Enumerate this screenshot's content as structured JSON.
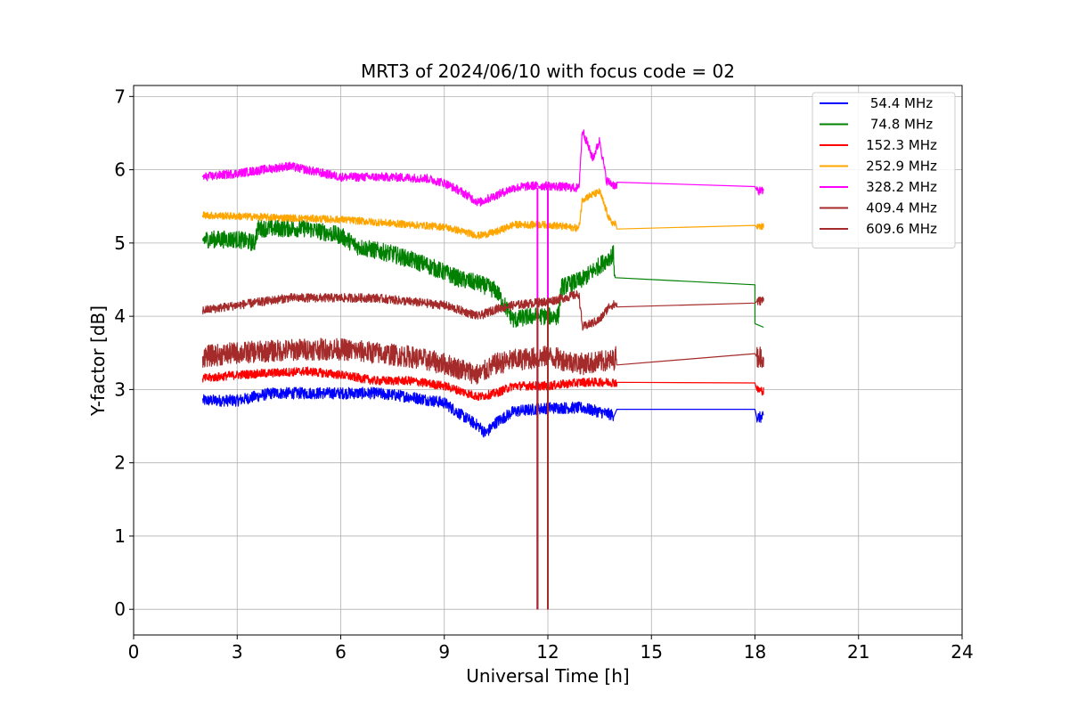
{
  "chart_data": {
    "type": "line",
    "title": "MRT3 of 2024/06/10 with focus code = 02",
    "xlabel": "Universal Time [h]",
    "ylabel": "Y-factor [dB]",
    "xlim": [
      0,
      24
    ],
    "ylim": [
      -0.35,
      7.15
    ],
    "xticks": [
      0,
      3,
      6,
      9,
      12,
      15,
      18,
      21,
      24
    ],
    "yticks": [
      0,
      1,
      2,
      3,
      4,
      5,
      6,
      7
    ],
    "xtick_labels": [
      "0",
      "3",
      "6",
      "9",
      "12",
      "15",
      "18",
      "21",
      "24"
    ],
    "ytick_labels": [
      "0",
      "1",
      "2",
      "3",
      "4",
      "5",
      "6",
      "7"
    ],
    "grid": true,
    "legend_position": "top-right",
    "series": [
      {
        "name": "54.4 MHz",
        "color": "#0000ff",
        "noise": 0.08,
        "points": [
          [
            2.0,
            2.85
          ],
          [
            3.0,
            2.85
          ],
          [
            4.0,
            2.95
          ],
          [
            5.0,
            2.95
          ],
          [
            6.0,
            2.95
          ],
          [
            7.0,
            2.95
          ],
          [
            8.0,
            2.9
          ],
          [
            9.0,
            2.82
          ],
          [
            9.5,
            2.65
          ],
          [
            10.0,
            2.5
          ],
          [
            10.2,
            2.4
          ],
          [
            10.5,
            2.55
          ],
          [
            11.0,
            2.7
          ],
          [
            12.0,
            2.75
          ],
          [
            13.0,
            2.75
          ],
          [
            13.9,
            2.65
          ],
          [
            14.0,
            2.73
          ],
          [
            18.0,
            2.73
          ],
          [
            18.05,
            2.62
          ],
          [
            18.25,
            2.62
          ]
        ],
        "gaps_after": [
          13.9,
          18.0
        ]
      },
      {
        "name": "74.8 MHz",
        "color": "#008000",
        "noise": 0.12,
        "points": [
          [
            2.0,
            5.05
          ],
          [
            3.0,
            5.05
          ],
          [
            3.5,
            5.0
          ],
          [
            3.6,
            5.2
          ],
          [
            5.0,
            5.2
          ],
          [
            6.0,
            5.1
          ],
          [
            6.5,
            4.95
          ],
          [
            7.5,
            4.85
          ],
          [
            8.5,
            4.7
          ],
          [
            9.5,
            4.5
          ],
          [
            10.0,
            4.45
          ],
          [
            10.5,
            4.35
          ],
          [
            11.0,
            3.95
          ],
          [
            11.5,
            4.0
          ],
          [
            12.3,
            4.0
          ],
          [
            12.4,
            4.4
          ],
          [
            13.0,
            4.5
          ],
          [
            13.9,
            4.85
          ],
          [
            13.95,
            4.45
          ],
          [
            18.0,
            4.43
          ],
          [
            18.0,
            3.9
          ],
          [
            18.25,
            3.85
          ]
        ],
        "gaps_after": [
          18.0
        ]
      },
      {
        "name": "152.3 MHz",
        "color": "#ff0000",
        "noise": 0.06,
        "points": [
          [
            2.0,
            3.15
          ],
          [
            3.0,
            3.2
          ],
          [
            5.0,
            3.25
          ],
          [
            6.0,
            3.2
          ],
          [
            7.0,
            3.12
          ],
          [
            8.0,
            3.12
          ],
          [
            9.0,
            3.05
          ],
          [
            10.0,
            2.9
          ],
          [
            10.5,
            2.95
          ],
          [
            11.0,
            3.05
          ],
          [
            12.0,
            3.05
          ],
          [
            13.0,
            3.1
          ],
          [
            13.9,
            3.1
          ],
          [
            14.0,
            3.09
          ],
          [
            18.0,
            3.09
          ],
          [
            18.05,
            3.0
          ],
          [
            18.25,
            2.98
          ]
        ],
        "gaps_after": [
          18.0
        ]
      },
      {
        "name": "252.9 MHz",
        "color": "#ffa500",
        "noise": 0.05,
        "points": [
          [
            2.0,
            5.38
          ],
          [
            4.0,
            5.35
          ],
          [
            6.0,
            5.32
          ],
          [
            8.0,
            5.25
          ],
          [
            9.0,
            5.22
          ],
          [
            10.0,
            5.1
          ],
          [
            10.5,
            5.15
          ],
          [
            11.0,
            5.25
          ],
          [
            12.0,
            5.25
          ],
          [
            12.9,
            5.2
          ],
          [
            13.0,
            5.6
          ],
          [
            13.5,
            5.7
          ],
          [
            13.8,
            5.3
          ],
          [
            14.0,
            5.24
          ],
          [
            18.0,
            5.24
          ],
          [
            18.05,
            5.22
          ],
          [
            18.25,
            5.22
          ]
        ],
        "gaps_after": [
          18.0
        ]
      },
      {
        "name": "328.2 MHz",
        "color": "#ff00ff",
        "noise": 0.06,
        "points": [
          [
            2.0,
            5.9
          ],
          [
            3.0,
            5.95
          ],
          [
            4.5,
            6.05
          ],
          [
            6.0,
            5.9
          ],
          [
            7.5,
            5.9
          ],
          [
            8.5,
            5.88
          ],
          [
            9.0,
            5.82
          ],
          [
            9.5,
            5.7
          ],
          [
            10.0,
            5.55
          ],
          [
            10.5,
            5.65
          ],
          [
            11.0,
            5.75
          ],
          [
            11.5,
            5.78
          ],
          [
            12.0,
            5.78
          ],
          [
            12.9,
            5.75
          ],
          [
            13.0,
            6.55
          ],
          [
            13.3,
            6.15
          ],
          [
            13.5,
            6.4
          ],
          [
            13.7,
            5.85
          ],
          [
            14.0,
            5.77
          ],
          [
            18.0,
            5.77
          ],
          [
            18.05,
            5.72
          ],
          [
            18.25,
            5.7
          ]
        ],
        "gaps_after": [
          18.0
        ],
        "spikes": [
          [
            11.7,
            5.75
          ],
          [
            12.0,
            5.75
          ]
        ]
      },
      {
        "name": "409.4 MHz",
        "color": "#a52a2a",
        "noise": 0.06,
        "points": [
          [
            2.0,
            4.08
          ],
          [
            3.0,
            4.15
          ],
          [
            4.5,
            4.25
          ],
          [
            6.0,
            4.25
          ],
          [
            7.0,
            4.25
          ],
          [
            8.0,
            4.2
          ],
          [
            9.0,
            4.15
          ],
          [
            10.0,
            4.0
          ],
          [
            10.5,
            4.1
          ],
          [
            11.0,
            4.15
          ],
          [
            12.0,
            4.2
          ],
          [
            12.9,
            4.3
          ],
          [
            13.0,
            3.85
          ],
          [
            13.5,
            3.95
          ],
          [
            13.8,
            4.15
          ],
          [
            14.0,
            4.16
          ],
          [
            18.0,
            4.18
          ],
          [
            18.05,
            4.2
          ],
          [
            18.25,
            4.22
          ]
        ],
        "gaps_after": [
          18.0
        ],
        "spikes": [
          [
            11.7,
            4.25
          ],
          [
            12.0,
            4.25
          ]
        ]
      },
      {
        "name": "609.6 MHz",
        "color": "#a52a2a",
        "noise": 0.15,
        "points": [
          [
            2.0,
            3.45
          ],
          [
            3.0,
            3.5
          ],
          [
            5.0,
            3.55
          ],
          [
            6.0,
            3.55
          ],
          [
            7.0,
            3.5
          ],
          [
            8.0,
            3.45
          ],
          [
            9.0,
            3.35
          ],
          [
            10.0,
            3.2
          ],
          [
            10.5,
            3.35
          ],
          [
            11.0,
            3.4
          ],
          [
            12.0,
            3.45
          ],
          [
            13.0,
            3.35
          ],
          [
            13.9,
            3.4
          ],
          [
            14.0,
            3.47
          ],
          [
            18.0,
            3.49
          ],
          [
            18.05,
            3.45
          ],
          [
            18.25,
            3.45
          ]
        ],
        "gaps_after": [
          18.0
        ],
        "spikes": [
          [
            11.7,
            3.4
          ],
          [
            12.0,
            3.4
          ]
        ]
      }
    ]
  }
}
